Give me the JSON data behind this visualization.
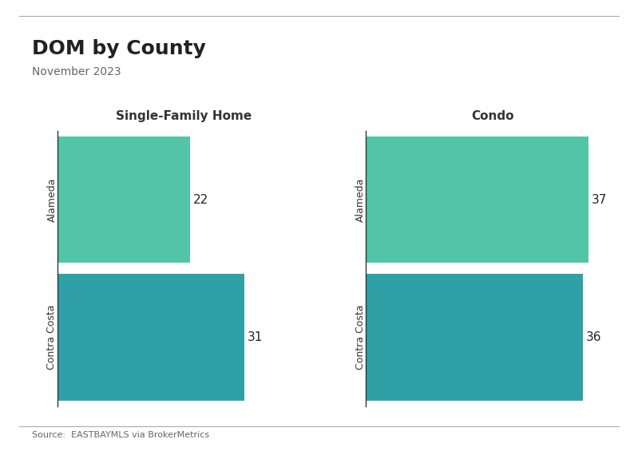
{
  "title": "DOM by County",
  "subtitle": "November 2023",
  "source_text": "Source:  EASTBAYMLS via BrokerMetrics",
  "background_color": "#ffffff",
  "panel_titles": [
    "Single-Family Home",
    "Condo"
  ],
  "categories": [
    "Alameda",
    "Contra Costa"
  ],
  "sfh_values": [
    22,
    31
  ],
  "condo_values": [
    37,
    36
  ],
  "bar_colors": [
    "#52c4a8",
    "#2fa0a5"
  ],
  "bar_height": 0.92,
  "xlim": [
    0,
    42
  ],
  "value_fontsize": 11,
  "category_fontsize": 9,
  "panel_title_fontsize": 11,
  "title_fontsize": 18,
  "subtitle_fontsize": 10,
  "source_fontsize": 8
}
